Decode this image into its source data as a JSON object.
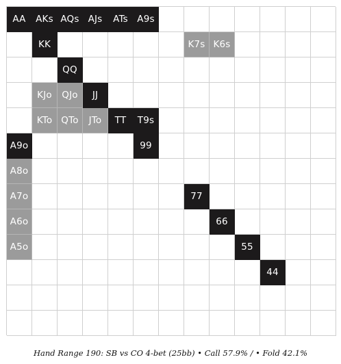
{
  "legend": {
    "call": {
      "label": "Call",
      "color": "#1c1a1b"
    },
    "fold": {
      "label": "Fold",
      "color": "#9b9b9b"
    },
    "empty_color": "#ffffff"
  },
  "caption": "Hand Range 190: SB vs CO 4-bet (25bb) • Call 57.9% / • Fold 42.1%",
  "grid": {
    "rows": 13,
    "cols": 13,
    "cells": [
      {
        "r": 0,
        "c": 0,
        "label": "AA",
        "action": "call"
      },
      {
        "r": 0,
        "c": 1,
        "label": "AKs",
        "action": "call"
      },
      {
        "r": 0,
        "c": 2,
        "label": "AQs",
        "action": "call"
      },
      {
        "r": 0,
        "c": 3,
        "label": "AJs",
        "action": "call"
      },
      {
        "r": 0,
        "c": 4,
        "label": "ATs",
        "action": "call"
      },
      {
        "r": 0,
        "c": 5,
        "label": "A9s",
        "action": "call"
      },
      {
        "r": 1,
        "c": 1,
        "label": "KK",
        "action": "call"
      },
      {
        "r": 1,
        "c": 7,
        "label": "K7s",
        "action": "fold"
      },
      {
        "r": 1,
        "c": 8,
        "label": "K6s",
        "action": "fold"
      },
      {
        "r": 2,
        "c": 2,
        "label": "QQ",
        "action": "call"
      },
      {
        "r": 3,
        "c": 1,
        "label": "KJo",
        "action": "fold"
      },
      {
        "r": 3,
        "c": 2,
        "label": "QJo",
        "action": "fold"
      },
      {
        "r": 3,
        "c": 3,
        "label": "JJ",
        "action": "call"
      },
      {
        "r": 4,
        "c": 1,
        "label": "KTo",
        "action": "fold"
      },
      {
        "r": 4,
        "c": 2,
        "label": "QTo",
        "action": "fold"
      },
      {
        "r": 4,
        "c": 3,
        "label": "JTo",
        "action": "fold"
      },
      {
        "r": 4,
        "c": 4,
        "label": "TT",
        "action": "call"
      },
      {
        "r": 4,
        "c": 5,
        "label": "T9s",
        "action": "call"
      },
      {
        "r": 5,
        "c": 0,
        "label": "A9o",
        "action": "call"
      },
      {
        "r": 5,
        "c": 5,
        "label": "99",
        "action": "call"
      },
      {
        "r": 6,
        "c": 0,
        "label": "A8o",
        "action": "fold"
      },
      {
        "r": 7,
        "c": 0,
        "label": "A7o",
        "action": "fold"
      },
      {
        "r": 7,
        "c": 7,
        "label": "77",
        "action": "call"
      },
      {
        "r": 8,
        "c": 0,
        "label": "A6o",
        "action": "fold"
      },
      {
        "r": 8,
        "c": 8,
        "label": "66",
        "action": "call"
      },
      {
        "r": 9,
        "c": 0,
        "label": "A5o",
        "action": "fold"
      },
      {
        "r": 9,
        "c": 9,
        "label": "55",
        "action": "call"
      },
      {
        "r": 10,
        "c": 10,
        "label": "44",
        "action": "call"
      }
    ]
  }
}
